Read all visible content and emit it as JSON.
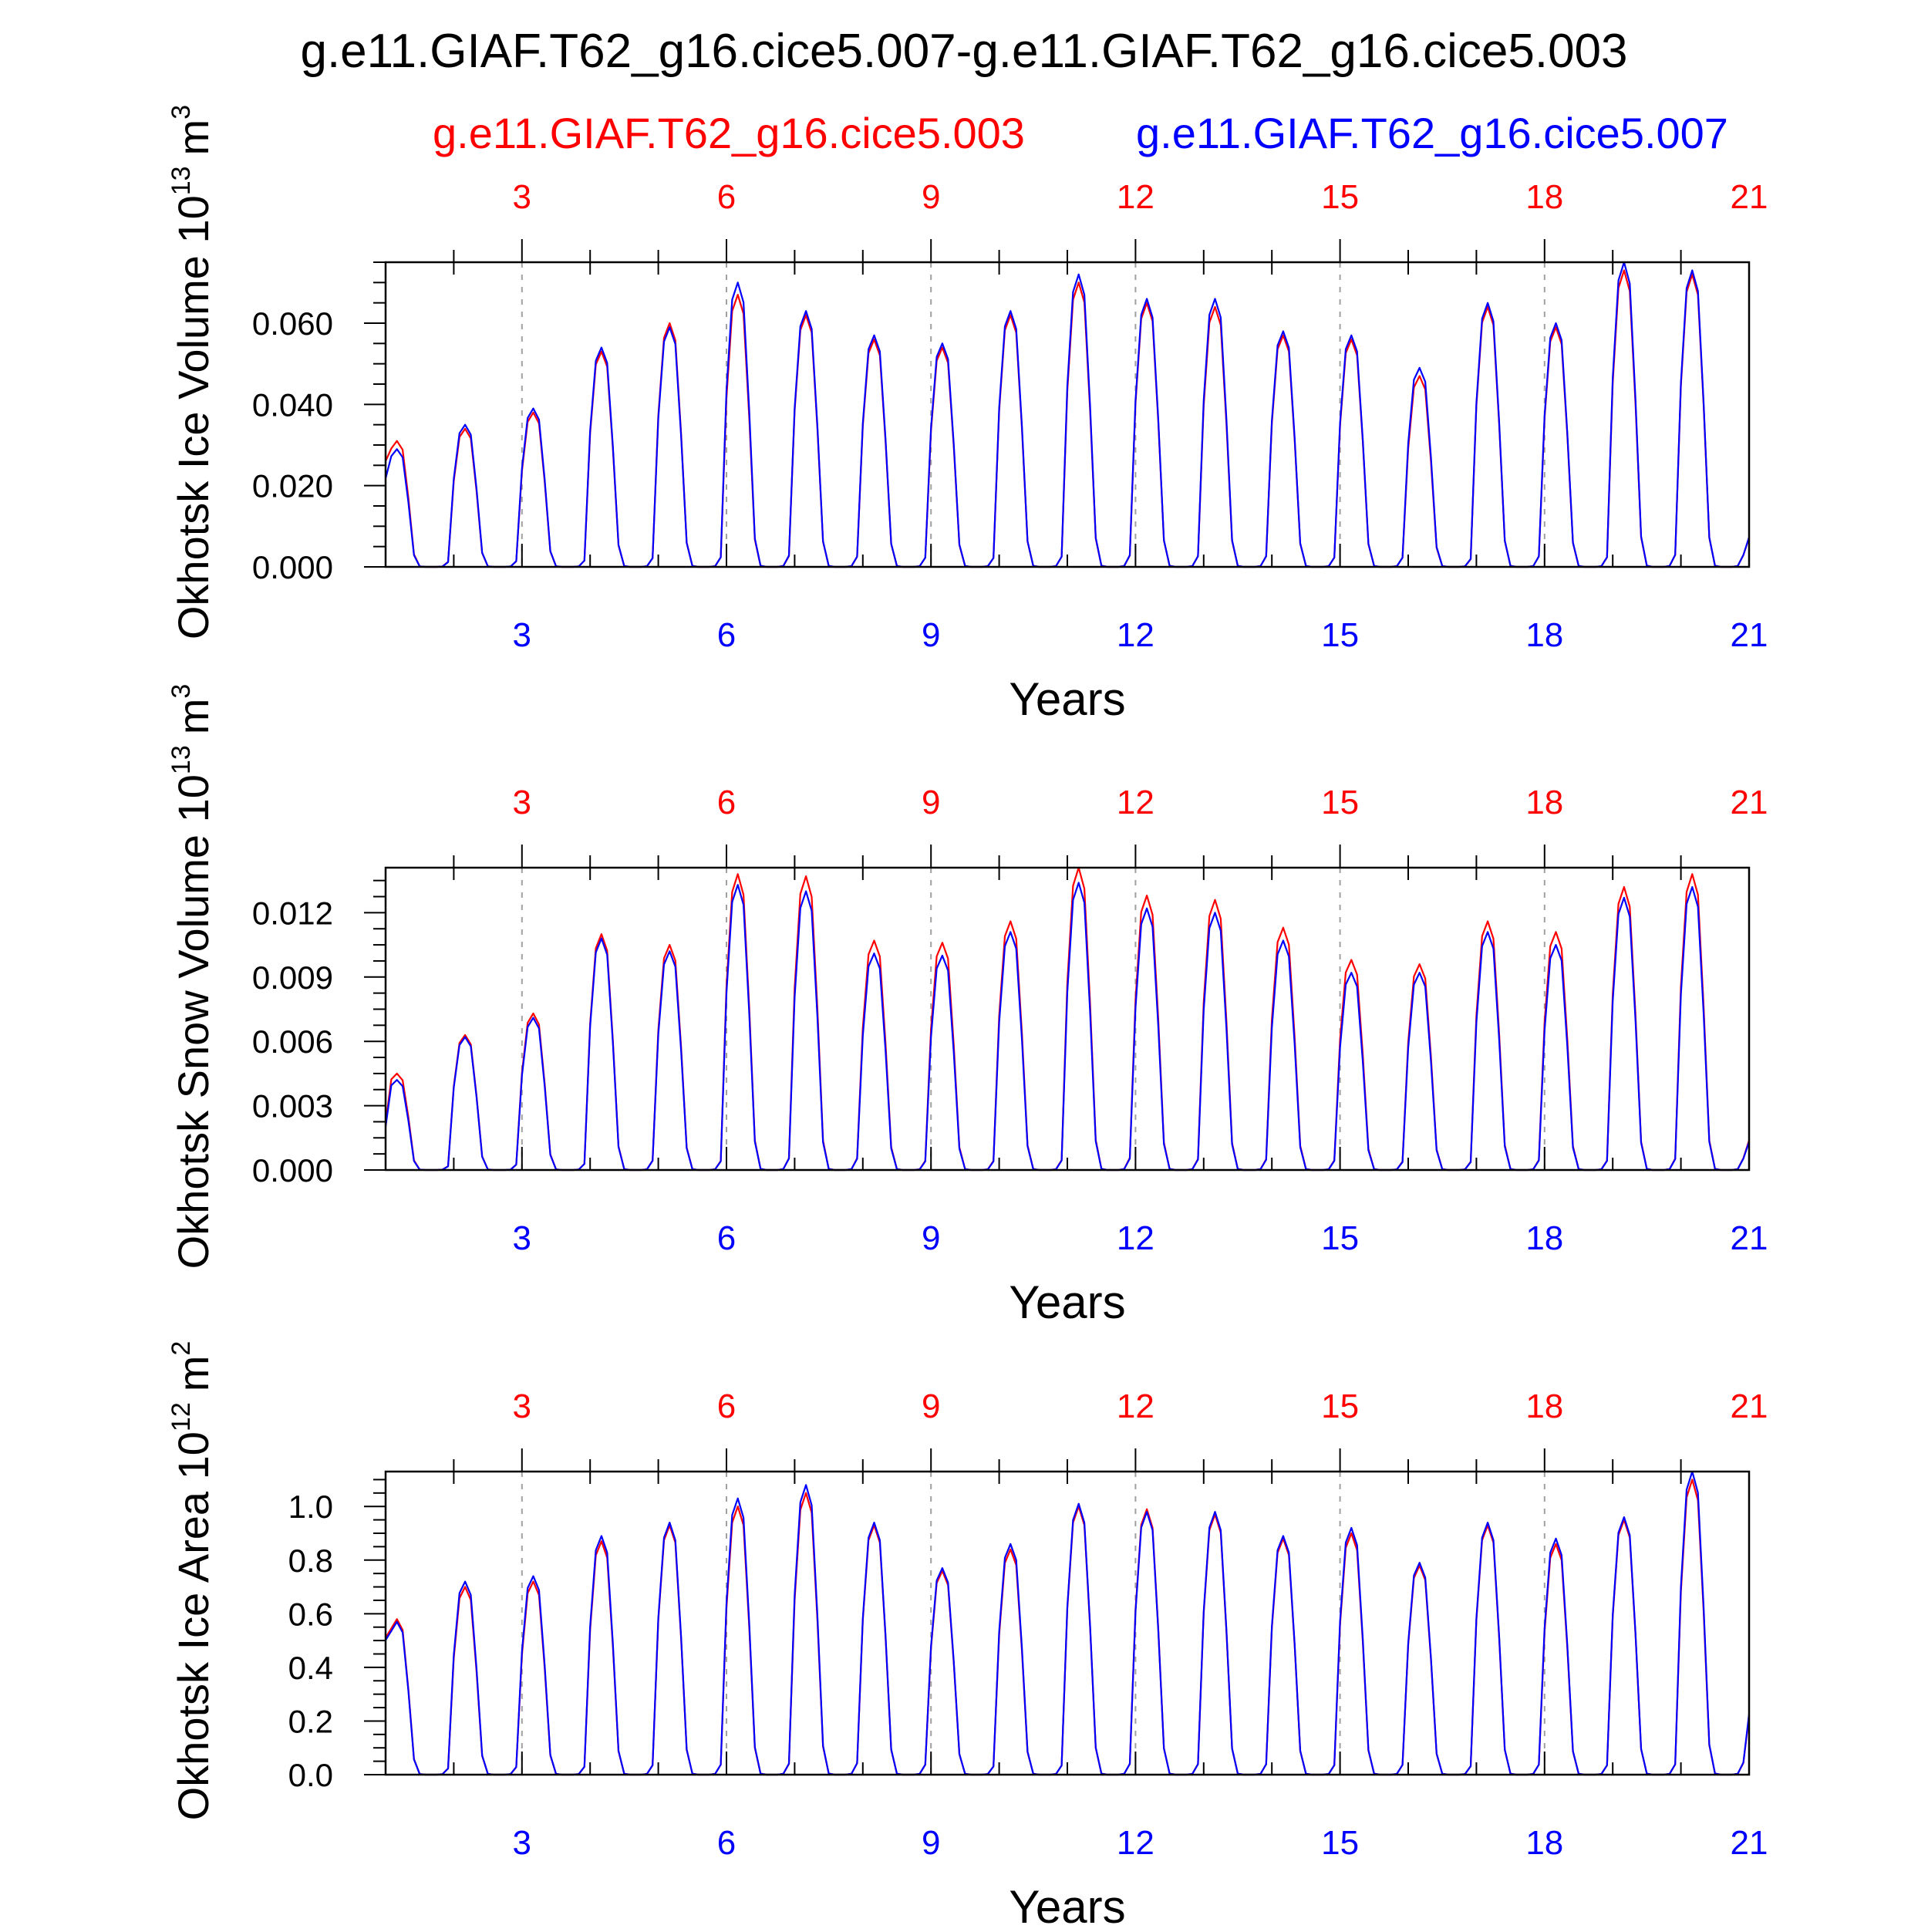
{
  "title": "g.e11.GIAF.T62_g16.cice5.007-g.e11.GIAF.T62_g16.cice5.003",
  "legend": {
    "red_label": "g.e11.GIAF.T62_g16.cice5.003",
    "blue_label": "g.e11.GIAF.T62_g16.cice5.007"
  },
  "colors": {
    "red": "#ff0000",
    "blue": "#0000ff",
    "axis": "#000000",
    "grid": "#a0a0a0"
  },
  "chart_data": [
    {
      "type": "line",
      "ylabel": "Okhotsk Ice Volume 10",
      "ylabel_exp": "13",
      "ylabel_unit": "m",
      "ylabel_unit_exp": "3",
      "xlabel": "Years",
      "xlim": [
        1,
        21
      ],
      "ylim": [
        0,
        0.075
      ],
      "yticks": [
        0,
        0.02,
        0.04,
        0.06
      ],
      "ytick_labels": [
        "0.000",
        "0.020",
        "0.040",
        "0.060"
      ],
      "xticks": [
        3,
        6,
        9,
        12,
        15,
        18,
        21
      ],
      "xtick_labels": [
        "3",
        "6",
        "9",
        "12",
        "15",
        "18",
        "21"
      ],
      "grid_x": true,
      "series": [
        {
          "name": "g.e11.GIAF.T62_g16.cice5.003",
          "color": "#ff0000",
          "peaks": [
            0.031,
            0.034,
            0.038,
            0.053,
            0.06,
            0.067,
            0.062,
            0.056,
            0.054,
            0.062,
            0.07,
            0.065,
            0.064,
            0.057,
            0.056,
            0.047,
            0.064,
            0.059,
            0.073,
            0.072
          ]
        },
        {
          "name": "g.e11.GIAF.T62_g16.cice5.007",
          "color": "#0000ff",
          "peaks": [
            0.029,
            0.035,
            0.039,
            0.054,
            0.059,
            0.07,
            0.063,
            0.057,
            0.055,
            0.063,
            0.072,
            0.066,
            0.066,
            0.058,
            0.057,
            0.049,
            0.065,
            0.06,
            0.075,
            0.073
          ]
        }
      ]
    },
    {
      "type": "line",
      "ylabel": "Okhotsk Snow Volume 10",
      "ylabel_exp": "13",
      "ylabel_unit": "m",
      "ylabel_unit_exp": "3",
      "xlabel": "Years",
      "xlim": [
        1,
        21
      ],
      "ylim": [
        0,
        0.0141
      ],
      "yticks": [
        0,
        0.003,
        0.006,
        0.009,
        0.012
      ],
      "ytick_labels": [
        "0.000",
        "0.003",
        "0.006",
        "0.009",
        "0.012"
      ],
      "xticks": [
        3,
        6,
        9,
        12,
        15,
        18,
        21
      ],
      "xtick_labels": [
        "3",
        "6",
        "9",
        "12",
        "15",
        "18",
        "21"
      ],
      "grid_x": true,
      "series": [
        {
          "name": "g.e11.GIAF.T62_g16.cice5.003",
          "color": "#ff0000",
          "peaks": [
            0.0045,
            0.0063,
            0.0073,
            0.011,
            0.0105,
            0.0138,
            0.0137,
            0.0107,
            0.0106,
            0.0116,
            0.0141,
            0.0128,
            0.0126,
            0.0113,
            0.0098,
            0.0096,
            0.0116,
            0.0111,
            0.0132,
            0.0138
          ]
        },
        {
          "name": "g.e11.GIAF.T62_g16.cice5.007",
          "color": "#0000ff",
          "peaks": [
            0.0042,
            0.0062,
            0.0071,
            0.0108,
            0.0102,
            0.0133,
            0.013,
            0.0101,
            0.01,
            0.0111,
            0.0134,
            0.0122,
            0.012,
            0.0107,
            0.0092,
            0.0092,
            0.0111,
            0.0105,
            0.0127,
            0.0132
          ]
        }
      ]
    },
    {
      "type": "line",
      "ylabel": "Okhotsk Ice Area 10",
      "ylabel_exp": "12",
      "ylabel_unit": "m",
      "ylabel_unit_exp": "2",
      "xlabel": "Years",
      "xlim": [
        1,
        21
      ],
      "ylim": [
        0,
        1.13
      ],
      "yticks": [
        0,
        0.2,
        0.4,
        0.6,
        0.8,
        1.0
      ],
      "ytick_labels": [
        "0.0",
        "0.2",
        "0.4",
        "0.6",
        "0.8",
        "1.0"
      ],
      "xticks": [
        3,
        6,
        9,
        12,
        15,
        18,
        21
      ],
      "xtick_labels": [
        "3",
        "6",
        "9",
        "12",
        "15",
        "18",
        "21"
      ],
      "grid_x": true,
      "series": [
        {
          "name": "g.e11.GIAF.T62_g16.cice5.003",
          "color": "#ff0000",
          "peaks": [
            0.58,
            0.7,
            0.72,
            0.87,
            0.93,
            1.0,
            1.05,
            0.93,
            0.76,
            0.84,
            1.0,
            0.99,
            0.97,
            0.88,
            0.9,
            0.78,
            0.93,
            0.86,
            0.95,
            1.1
          ]
        },
        {
          "name": "g.e11.GIAF.T62_g16.cice5.007",
          "color": "#0000ff",
          "peaks": [
            0.57,
            0.72,
            0.74,
            0.89,
            0.94,
            1.03,
            1.08,
            0.94,
            0.77,
            0.86,
            1.01,
            0.98,
            0.98,
            0.89,
            0.92,
            0.79,
            0.94,
            0.88,
            0.96,
            1.13
          ]
        }
      ]
    }
  ]
}
